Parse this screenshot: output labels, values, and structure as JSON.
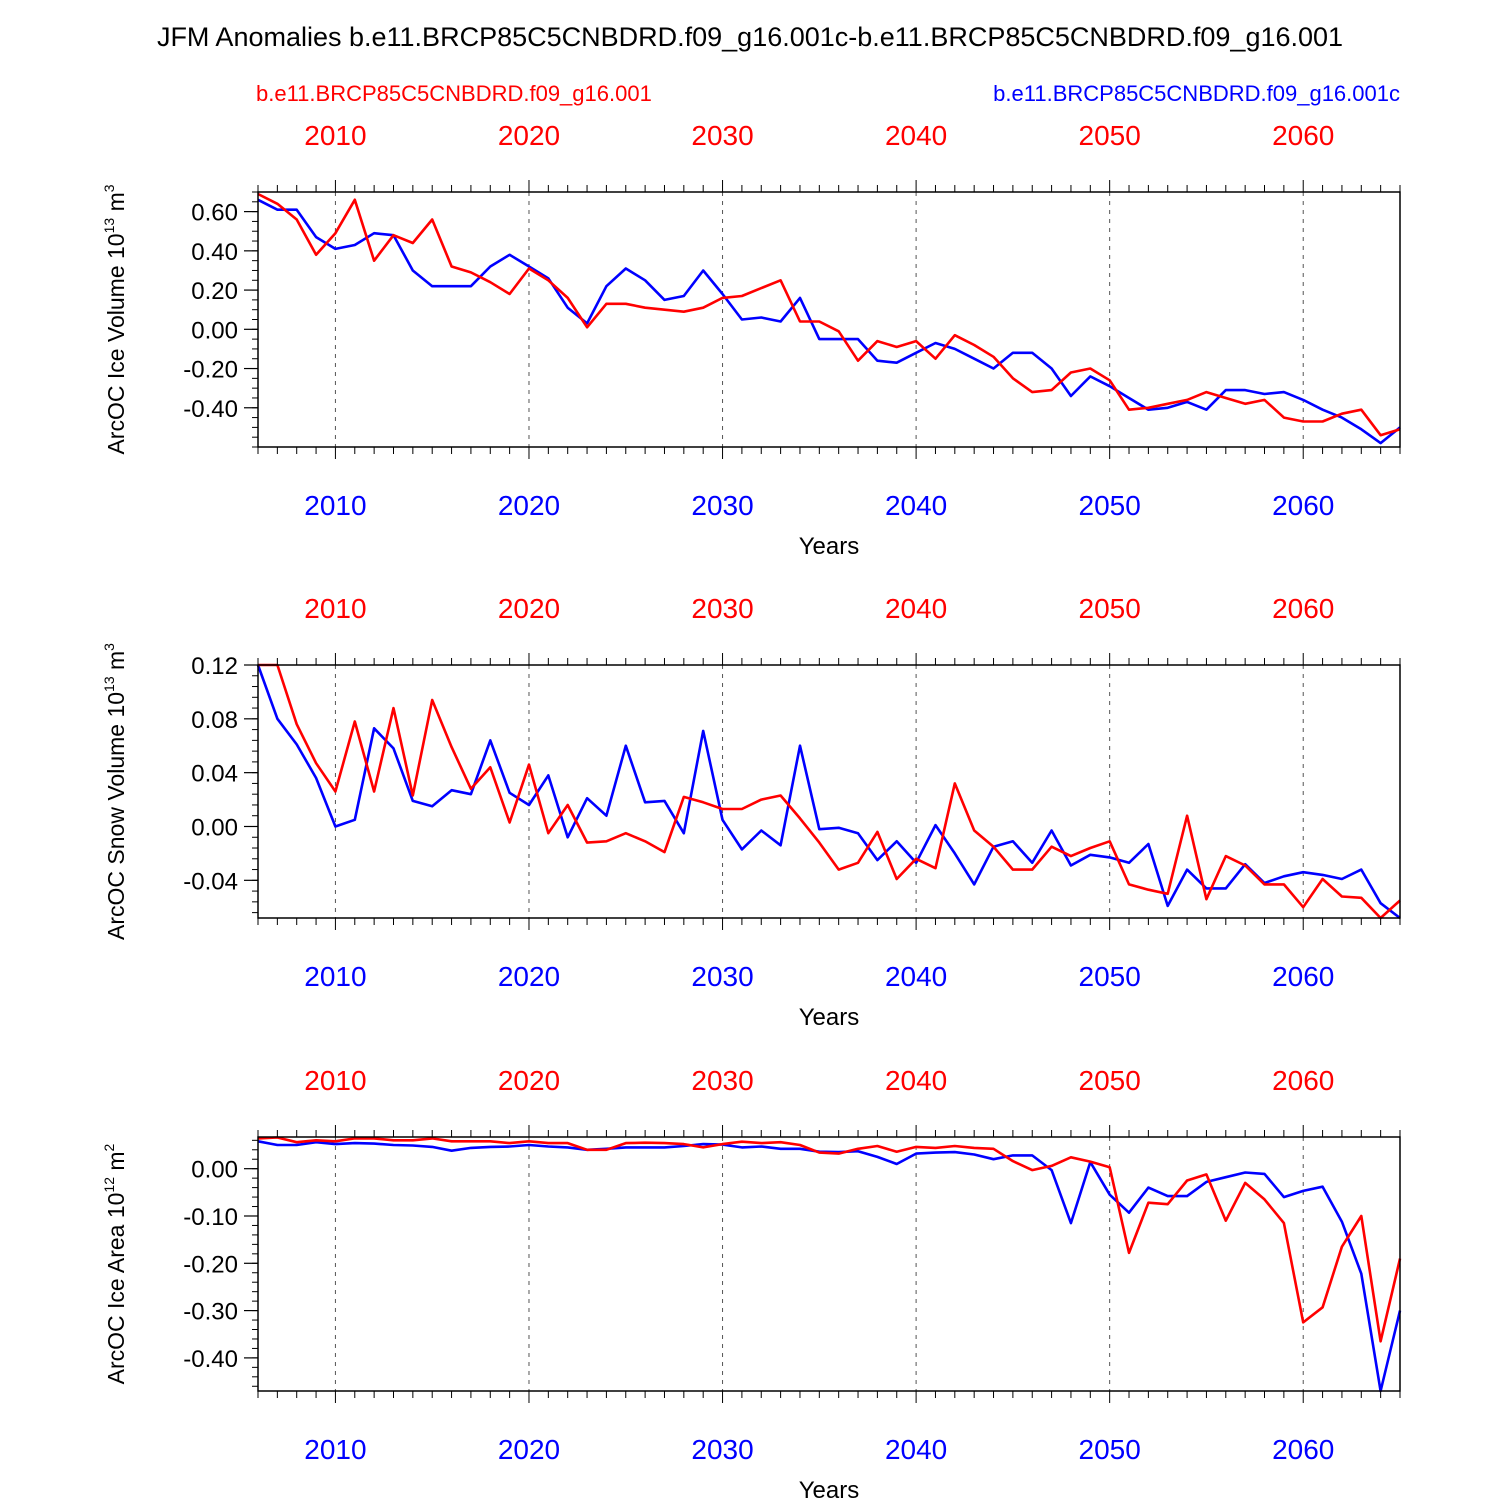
{
  "title": "JFM Anomalies b.e11.BRCP85C5CNBDRD.f09_g16.001c-b.e11.BRCP85C5CNBDRD.f09_g16.001",
  "legend": {
    "left": "b.e11.BRCP85C5CNBDRD.f09_g16.001",
    "right": "b.e11.BRCP85C5CNBDRD.f09_g16.001c"
  },
  "colors": {
    "red_series": "#ff0000",
    "blue_series": "#0000ff",
    "axis": "#000000",
    "grid": "#555555"
  },
  "chart_data": [
    {
      "type": "line",
      "ylabel_main": "ArcOC Ice Volume 10",
      "ylabel_exp": "13",
      "ylabel_unit": " m",
      "ylabel_unit_exp": "3",
      "xlabel": "Years",
      "xlim": [
        2006,
        2065
      ],
      "ylim": [
        -0.6,
        0.7
      ],
      "yticks": [
        0.6,
        0.4,
        0.2,
        0.0,
        -0.2,
        -0.4
      ],
      "ytick_labels": [
        "0.60",
        "0.40",
        "0.20",
        "0.00",
        "-0.20",
        "-0.40"
      ],
      "minor_step": 0.05,
      "xticks": [
        2010,
        2020,
        2030,
        2040,
        2050,
        2060
      ],
      "xtick_labels_top": [
        "2010",
        "2020",
        "2030",
        "2040",
        "2050",
        "2060"
      ],
      "xtick_labels_bottom": [
        "2010",
        "2020",
        "2030",
        "2040",
        "2050",
        "2060"
      ],
      "x_start": 2006,
      "series": [
        {
          "name": "b.e11.BRCP85C5CNBDRD.f09_g16.001c",
          "color": "blue",
          "values": [
            0.66,
            0.61,
            0.61,
            0.47,
            0.41,
            0.43,
            0.49,
            0.48,
            0.3,
            0.22,
            0.22,
            0.22,
            0.32,
            0.38,
            0.32,
            0.26,
            0.11,
            0.03,
            0.22,
            0.31,
            0.25,
            0.15,
            0.17,
            0.3,
            0.18,
            0.05,
            0.06,
            0.04,
            0.16,
            -0.05,
            -0.05,
            -0.05,
            -0.16,
            -0.17,
            -0.12,
            -0.07,
            -0.1,
            -0.15,
            -0.2,
            -0.12,
            -0.12,
            -0.2,
            -0.34,
            -0.24,
            -0.29,
            -0.35,
            -0.41,
            -0.4,
            -0.37,
            -0.41,
            -0.31,
            -0.31,
            -0.33,
            -0.32,
            -0.36,
            -0.41,
            -0.45,
            -0.51,
            -0.58,
            -0.5
          ]
        },
        {
          "name": "b.e11.BRCP85C5CNBDRD.f09_g16.001",
          "color": "red",
          "values": [
            0.69,
            0.64,
            0.56,
            0.38,
            0.49,
            0.66,
            0.35,
            0.48,
            0.44,
            0.56,
            0.32,
            0.29,
            0.24,
            0.18,
            0.31,
            0.25,
            0.16,
            0.01,
            0.13,
            0.13,
            0.11,
            0.1,
            0.09,
            0.11,
            0.16,
            0.17,
            0.21,
            0.25,
            0.04,
            0.04,
            -0.01,
            -0.16,
            -0.06,
            -0.09,
            -0.06,
            -0.15,
            -0.03,
            -0.08,
            -0.14,
            -0.25,
            -0.32,
            -0.31,
            -0.22,
            -0.2,
            -0.26,
            -0.41,
            -0.4,
            -0.38,
            -0.36,
            -0.32,
            -0.35,
            -0.38,
            -0.36,
            -0.45,
            -0.47,
            -0.47,
            -0.43,
            -0.41,
            -0.54,
            -0.51
          ]
        }
      ]
    },
    {
      "type": "line",
      "ylabel_main": "ArcOC Snow Volume 10",
      "ylabel_exp": "13",
      "ylabel_unit": " m",
      "ylabel_unit_exp": "3",
      "xlabel": "Years",
      "xlim": [
        2006,
        2065
      ],
      "ylim": [
        -0.068,
        0.12
      ],
      "yticks": [
        0.12,
        0.08,
        0.04,
        0.0,
        -0.04
      ],
      "ytick_labels": [
        "0.12",
        "0.08",
        "0.04",
        "0.00",
        "-0.04"
      ],
      "minor_step": 0.008,
      "xticks": [
        2010,
        2020,
        2030,
        2040,
        2050,
        2060
      ],
      "xtick_labels_top": [
        "2010",
        "2020",
        "2030",
        "2040",
        "2050",
        "2060"
      ],
      "xtick_labels_bottom": [
        "2010",
        "2020",
        "2030",
        "2040",
        "2050",
        "2060"
      ],
      "x_start": 2006,
      "series": [
        {
          "name": "b.e11.BRCP85C5CNBDRD.f09_g16.001c",
          "color": "blue",
          "values": [
            0.12,
            0.08,
            0.061,
            0.036,
            0.0,
            0.005,
            0.073,
            0.058,
            0.019,
            0.015,
            0.027,
            0.024,
            0.064,
            0.025,
            0.016,
            0.038,
            -0.008,
            0.021,
            0.008,
            0.06,
            0.018,
            0.019,
            -0.005,
            0.071,
            0.005,
            -0.017,
            -0.003,
            -0.014,
            0.06,
            -0.002,
            -0.001,
            -0.005,
            -0.025,
            -0.011,
            -0.027,
            0.001,
            -0.02,
            -0.043,
            -0.015,
            -0.011,
            -0.027,
            -0.003,
            -0.029,
            -0.021,
            -0.023,
            -0.027,
            -0.013,
            -0.059,
            -0.032,
            -0.046,
            -0.046,
            -0.028,
            -0.042,
            -0.037,
            -0.034,
            -0.036,
            -0.039,
            -0.032,
            -0.057,
            -0.068
          ]
        },
        {
          "name": "b.e11.BRCP85C5CNBDRD.f09_g16.001",
          "color": "red",
          "values": [
            0.12,
            0.12,
            0.076,
            0.047,
            0.026,
            0.078,
            0.026,
            0.088,
            0.023,
            0.094,
            0.059,
            0.028,
            0.044,
            0.003,
            0.046,
            -0.005,
            0.016,
            -0.012,
            -0.011,
            -0.005,
            -0.011,
            -0.019,
            0.022,
            0.018,
            0.013,
            0.013,
            0.02,
            0.023,
            0.006,
            -0.012,
            -0.032,
            -0.027,
            -0.004,
            -0.039,
            -0.024,
            -0.031,
            0.032,
            -0.003,
            -0.015,
            -0.032,
            -0.032,
            -0.015,
            -0.022,
            -0.016,
            -0.011,
            -0.043,
            -0.047,
            -0.05,
            0.008,
            -0.054,
            -0.022,
            -0.029,
            -0.043,
            -0.043,
            -0.06,
            -0.039,
            -0.052,
            -0.053,
            -0.068,
            -0.055
          ]
        }
      ]
    },
    {
      "type": "line",
      "ylabel_main": "ArcOC Ice Area 10",
      "ylabel_exp": "12",
      "ylabel_unit": " m",
      "ylabel_unit_exp": "2",
      "xlabel": "Years",
      "xlim": [
        2006,
        2065
      ],
      "ylim": [
        -0.47,
        0.067
      ],
      "yticks": [
        0.0,
        -0.1,
        -0.2,
        -0.3,
        -0.4
      ],
      "ytick_labels": [
        "0.00",
        "-0.10",
        "-0.20",
        "-0.30",
        "-0.40"
      ],
      "minor_step": 0.02,
      "xticks": [
        2010,
        2020,
        2030,
        2040,
        2050,
        2060
      ],
      "xtick_labels_top": [
        "2010",
        "2020",
        "2030",
        "2040",
        "2050",
        "2060"
      ],
      "xtick_labels_bottom": [
        "2010",
        "2020",
        "2030",
        "2040",
        "2050",
        "2060"
      ],
      "x_start": 2006,
      "series": [
        {
          "name": "b.e11.BRCP85C5CNBDRD.f09_g16.001c",
          "color": "blue",
          "values": [
            0.058,
            0.05,
            0.05,
            0.056,
            0.052,
            0.054,
            0.053,
            0.05,
            0.049,
            0.046,
            0.038,
            0.044,
            0.046,
            0.047,
            0.05,
            0.047,
            0.045,
            0.04,
            0.042,
            0.045,
            0.045,
            0.045,
            0.048,
            0.052,
            0.051,
            0.045,
            0.047,
            0.042,
            0.042,
            0.036,
            0.035,
            0.037,
            0.025,
            0.01,
            0.032,
            0.034,
            0.035,
            0.03,
            0.02,
            0.028,
            0.028,
            -0.003,
            -0.115,
            0.014,
            -0.055,
            -0.093,
            -0.04,
            -0.058,
            -0.058,
            -0.028,
            -0.018,
            -0.008,
            -0.011,
            -0.06,
            -0.047,
            -0.038,
            -0.112,
            -0.222,
            -0.47,
            -0.3
          ]
        },
        {
          "name": "b.e11.BRCP85C5CNBDRD.f09_g16.001",
          "color": "red",
          "values": [
            0.064,
            0.066,
            0.056,
            0.06,
            0.058,
            0.064,
            0.064,
            0.06,
            0.06,
            0.064,
            0.058,
            0.058,
            0.058,
            0.054,
            0.058,
            0.054,
            0.054,
            0.04,
            0.04,
            0.054,
            0.055,
            0.054,
            0.052,
            0.045,
            0.052,
            0.057,
            0.054,
            0.056,
            0.05,
            0.034,
            0.032,
            0.042,
            0.048,
            0.036,
            0.046,
            0.044,
            0.048,
            0.044,
            0.042,
            0.016,
            -0.003,
            0.006,
            0.024,
            0.015,
            0.003,
            -0.178,
            -0.072,
            -0.075,
            -0.025,
            -0.012,
            -0.11,
            -0.03,
            -0.065,
            -0.115,
            -0.325,
            -0.293,
            -0.165,
            -0.1,
            -0.365,
            -0.19
          ]
        }
      ]
    }
  ]
}
